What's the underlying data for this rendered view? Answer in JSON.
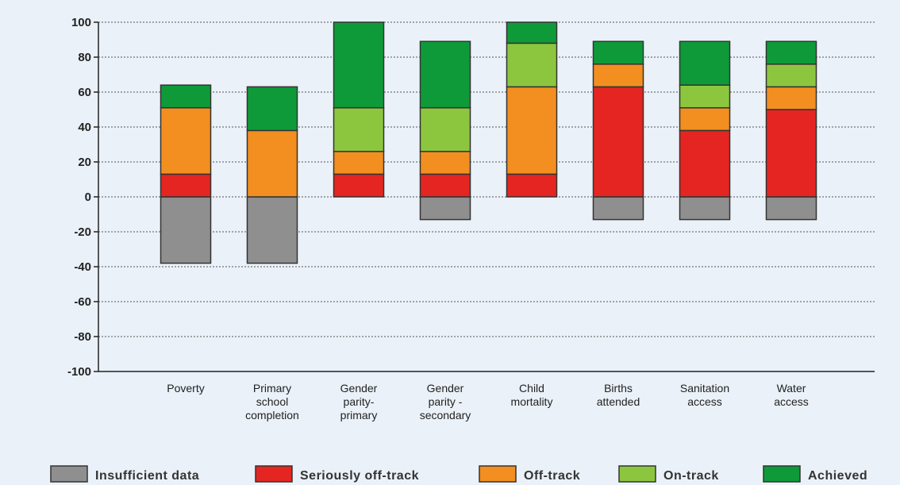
{
  "chart_data": {
    "type": "bar",
    "stacked": true,
    "ylim": [
      -100,
      100
    ],
    "yticks": [
      100,
      80,
      60,
      40,
      20,
      0,
      -20,
      -40,
      -60,
      -80,
      -100
    ],
    "grid": true,
    "legend_position": "bottom",
    "categories": [
      [
        "Poverty"
      ],
      [
        "Primary",
        "school",
        "completion"
      ],
      [
        "Gender",
        "parity-",
        "primary"
      ],
      [
        "Gender",
        "parity -",
        "secondary"
      ],
      [
        "Child",
        "mortality"
      ],
      [
        "Births",
        "attended"
      ],
      [
        "Sanitation",
        "access"
      ],
      [
        "Water",
        "access"
      ]
    ],
    "series": [
      {
        "name": "Insufficient data",
        "color": "#8f8f8f",
        "values": [
          -38,
          -38,
          0,
          -13,
          0,
          -13,
          -13,
          -13
        ]
      },
      {
        "name": "Seriously off-track",
        "color": "#e52521",
        "values": [
          13,
          0,
          13,
          13,
          13,
          63,
          38,
          50
        ]
      },
      {
        "name": "Off-track",
        "color": "#f28f20",
        "values": [
          38,
          38,
          13,
          13,
          50,
          13,
          13,
          13
        ]
      },
      {
        "name": "On-track",
        "color": "#8cc63f",
        "values": [
          0,
          0,
          25,
          25,
          25,
          0,
          13,
          13
        ]
      },
      {
        "name": "Achieved",
        "color": "#0f9a3a",
        "values": [
          13,
          25,
          49,
          38,
          12,
          13,
          25,
          13
        ]
      }
    ]
  }
}
